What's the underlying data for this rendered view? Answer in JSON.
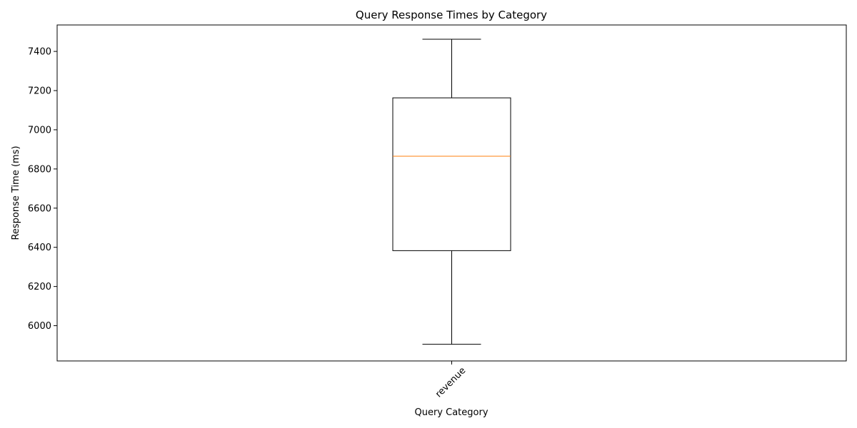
{
  "chart_data": {
    "type": "box",
    "title": "Query Response Times by Category",
    "xlabel": "Query Category",
    "ylabel": "Response Time (ms)",
    "ylim": [
      5820,
      7535
    ],
    "yticks": [
      6000,
      6200,
      6400,
      6600,
      6800,
      7000,
      7200,
      7400
    ],
    "grid": false,
    "categories": [
      "revenue"
    ],
    "boxes": [
      {
        "category": "revenue",
        "whisker_low": 5905,
        "q1": 6383,
        "median": 6865,
        "q3": 7163,
        "whisker_high": 7462
      }
    ],
    "colors": {
      "box": "#000000",
      "median": "#ff7f0e"
    }
  }
}
